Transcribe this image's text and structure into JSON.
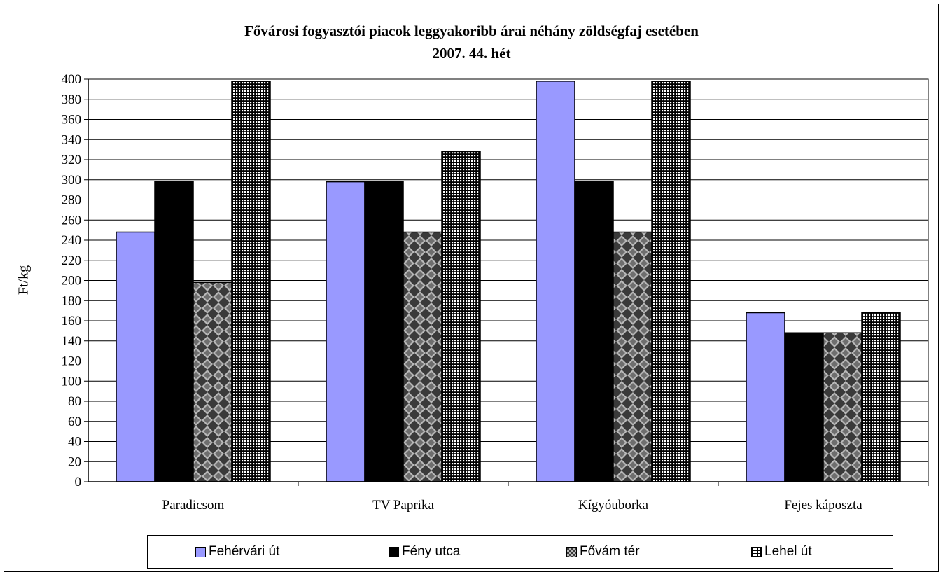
{
  "chart_data": {
    "type": "bar",
    "title": "Fővárosi fogyasztói piacok leggyakoribb árai néhány zöldségfaj esetében",
    "subtitle": "2007. 44. hét",
    "xlabel": "",
    "ylabel": "Ft/kg",
    "ylim": [
      0,
      400
    ],
    "ytick_step": 20,
    "grid": true,
    "legend_position": "bottom",
    "categories": [
      "Paradicsom",
      "TV Paprika",
      "Kígyóuborka",
      "Fejes káposzta"
    ],
    "series": [
      {
        "name": "Fehérvári út",
        "values": [
          248,
          298,
          398,
          168
        ],
        "color": "#9999ff",
        "pattern": "solid"
      },
      {
        "name": "Fény utca",
        "values": [
          298,
          298,
          298,
          148
        ],
        "color": "#000000",
        "pattern": "solid"
      },
      {
        "name": "Fővám tér",
        "values": [
          198,
          248,
          248,
          148
        ],
        "color": "#555555",
        "pattern": "diamond-check"
      },
      {
        "name": "Lehel út",
        "values": [
          398,
          328,
          398,
          168
        ],
        "color": "#000000",
        "pattern": "grid"
      }
    ]
  }
}
